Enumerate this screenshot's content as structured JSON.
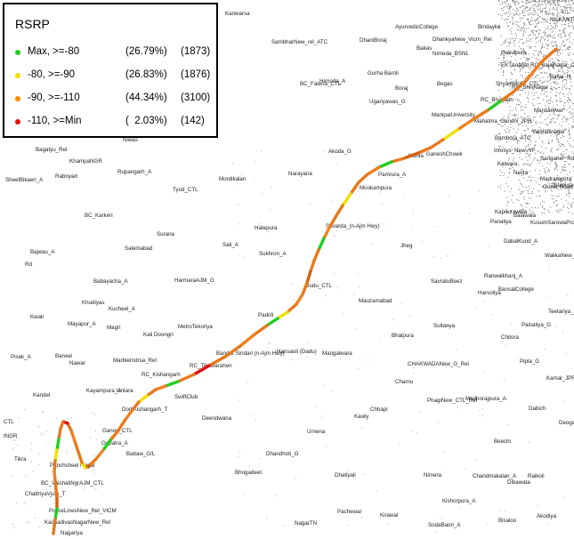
{
  "legend": {
    "title": "RSRP",
    "items": [
      {
        "label": "Max, >=-80",
        "percent": "(26.79%)",
        "count": "(1873)",
        "color": "#22cc22"
      },
      {
        "label": "-80, >=-90",
        "percent": "(26.83%)",
        "count": "(1876)",
        "color": "#f0e000"
      },
      {
        "label": "-90, >=-110",
        "percent": "(44.34%)",
        "count": "(3100)",
        "color": "#ff8a00"
      },
      {
        "label": "-110, >=Min",
        "percent": "(  2.03%)",
        "count": "(142)",
        "color": "#e01010"
      }
    ]
  },
  "route_colors": [
    "#e8781a",
    "#f08020",
    "#d06010",
    "#22cc22",
    "#f0e000",
    "#e01010"
  ],
  "place_labels": [
    "Kanwarsa",
    "SambharNew_rel_ATC",
    "DhaniBoraj",
    "AyurvedicCollege",
    "Bakas",
    "DhankyaNew_Vicm_Rel",
    "Nimeda_BSNL",
    "Bindayka",
    "EKTAnagar",
    "RC_Bajajnagar_CTL",
    "ShyamMnDr_CTL",
    "Gokulpura",
    "RC_ShivNagar",
    "Mansarovar",
    "Balya_H",
    "NILKANTHA",
    "Vaishalinagar",
    "Gurha Baroli",
    "Hirnoda_A",
    "BC_Faleria_CTL",
    "Boraj",
    "Begas",
    "Ugariyawas_G",
    "RC_Bhatlaan",
    "ManipalUniversity",
    "Mahatma_Gandhi_JPR",
    "Bambora_ATC",
    "Infosys_New_VF",
    "Kalwara",
    "Nevta",
    "Sanganer_Rd",
    "Madrampura",
    "Goner Road",
    "Sitapura",
    "Niwas",
    "Bagatyu_Rel",
    "KhampaNGR",
    "Rabnyad",
    "Rupangarh_A",
    "Tyod_CTL",
    "Mordikalan",
    "Narayana",
    "Akoda_G",
    "Mahla",
    "GaneshChowk",
    "Pamrura_A",
    "Mookampura",
    "Kapoorawala",
    "Balawala",
    "KusumSarowaProperty",
    "Panaliya",
    "SheelBikaeri_A",
    "BC_Karkeri",
    "Surana",
    "Savarda_(n-Ajm Hwy)",
    "Hatepura",
    "Sali_A",
    "Salemabad",
    "Sukhron_A",
    "Jheg",
    "DabalKund_A",
    "WalikaNew_Rel",
    "Bajwas_A",
    "Rd",
    "Babayacha_A",
    "HarmaraAJM_G",
    "Dudu_CTL",
    "Ranwalkhanj_A",
    "SavratuBeez",
    "Harsoliya",
    "BansalCollege",
    "Teetariya_A",
    "Khudiyas",
    "Kucheel_A",
    "Mauzamabad",
    "Kwalr",
    "Mayapur_A",
    "Magri",
    "MetroTekoriya",
    "Kali Doongri",
    "Padoli",
    "Sultanya",
    "Palsaliya_G",
    "Chitora",
    "Bhalpura",
    "Hansaoli (Dadu)",
    "Mangalwara",
    "Pipla_G",
    "Kamal_JPR",
    "Pisek_A",
    "Barwal",
    "Nawar",
    "MarbleIndrsa_Rel",
    "RC_Kishangarh",
    "Bandar Sindari (n-Ajm Hwy)",
    "RC_Tikawarahen",
    "CHAKWADANew_G_Rel",
    "Charnu",
    "Kayampura_A",
    "Untara",
    "DodiKishangarh_T",
    "SwiftClub",
    "PhagiNew_CTL_Rel",
    "Madhorajpura_A",
    "Kandel",
    "Chhapi",
    "Kawly",
    "Dabich",
    "Deogaon",
    "Deendwana",
    "Urnena",
    "Ganod_CTL",
    "Gopalra_A",
    "Babaw_G/L",
    "Dhandhoti_G",
    "Beechi",
    "Panchsheel Nagar",
    "BC_VaishaliNgrAJM_CTL",
    "Tikra",
    "ChattriyaVyas_T",
    "Bhogadeet",
    "Dhatiyali",
    "Nimera",
    "Chandmakalan_A",
    "Raikoli",
    "Dibawata",
    "PoliceLinesNew_Rel_VICM",
    "KachadivasNagarNew_Rel",
    "Nagariya",
    "NagarTN",
    "Pachewar",
    "Kirawal",
    "Kishorpura_A",
    "SodaBaori_A",
    "Bisaloo",
    "Akodiya",
    "CTL",
    "tNGR"
  ]
}
